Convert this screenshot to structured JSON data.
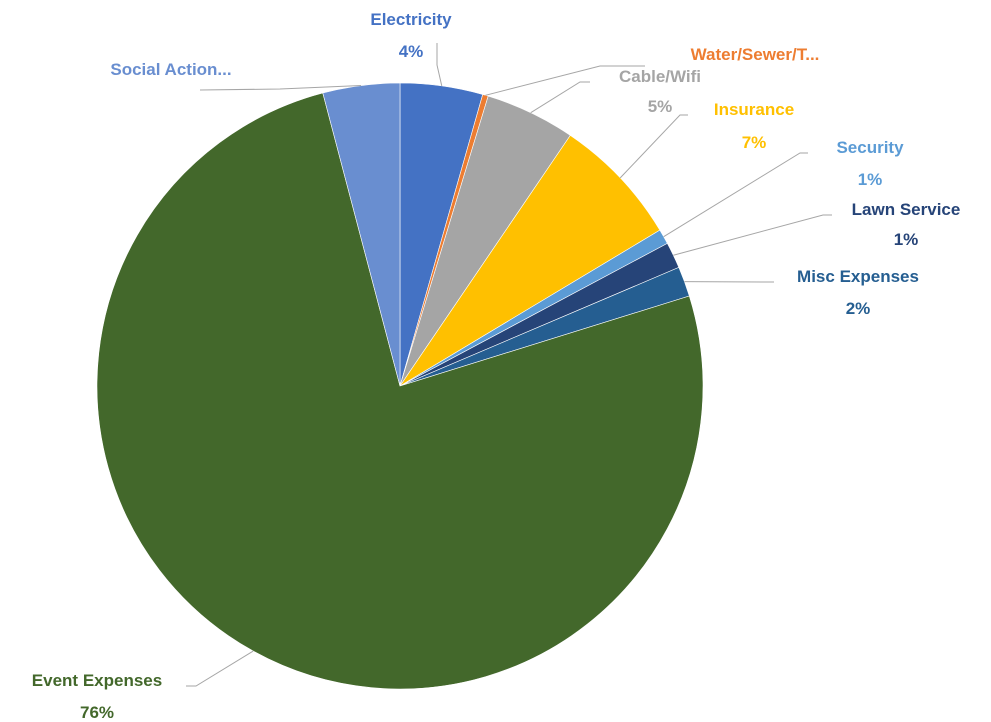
{
  "chart_data": {
    "type": "pie",
    "slices": [
      {
        "name": "Electricity",
        "value": 4.4,
        "pct_label": "4%",
        "color": "#4472c4"
      },
      {
        "name": "Water/Sewer/T...",
        "value": 0.3,
        "pct_label": "",
        "color": "#ed7d31"
      },
      {
        "name": "Cable/Wifi",
        "value": 4.8,
        "pct_label": "5%",
        "color": "#a5a5a5"
      },
      {
        "name": "Insurance",
        "value": 6.9,
        "pct_label": "7%",
        "color": "#ffc000"
      },
      {
        "name": "Security",
        "value": 0.8,
        "pct_label": "1%",
        "color": "#5b9bd5"
      },
      {
        "name": "Lawn Service",
        "value": 1.4,
        "pct_label": "1%",
        "color": "#264478"
      },
      {
        "name": "Misc Expenses",
        "value": 1.6,
        "pct_label": "2%",
        "color": "#255e91"
      },
      {
        "name": "Event Expenses",
        "value": 75.7,
        "pct_label": "76%",
        "color": "#43682b"
      },
      {
        "name": "Social Action...",
        "value": 4.1,
        "pct_label": "",
        "color": "#698ed0"
      }
    ],
    "label_colors": [
      "#4472c4",
      "#ed7d31",
      "#a5a5a5",
      "#ffc000",
      "#5b9bd5",
      "#264478",
      "#255e91",
      "#43682b",
      "#698ed0"
    ]
  }
}
